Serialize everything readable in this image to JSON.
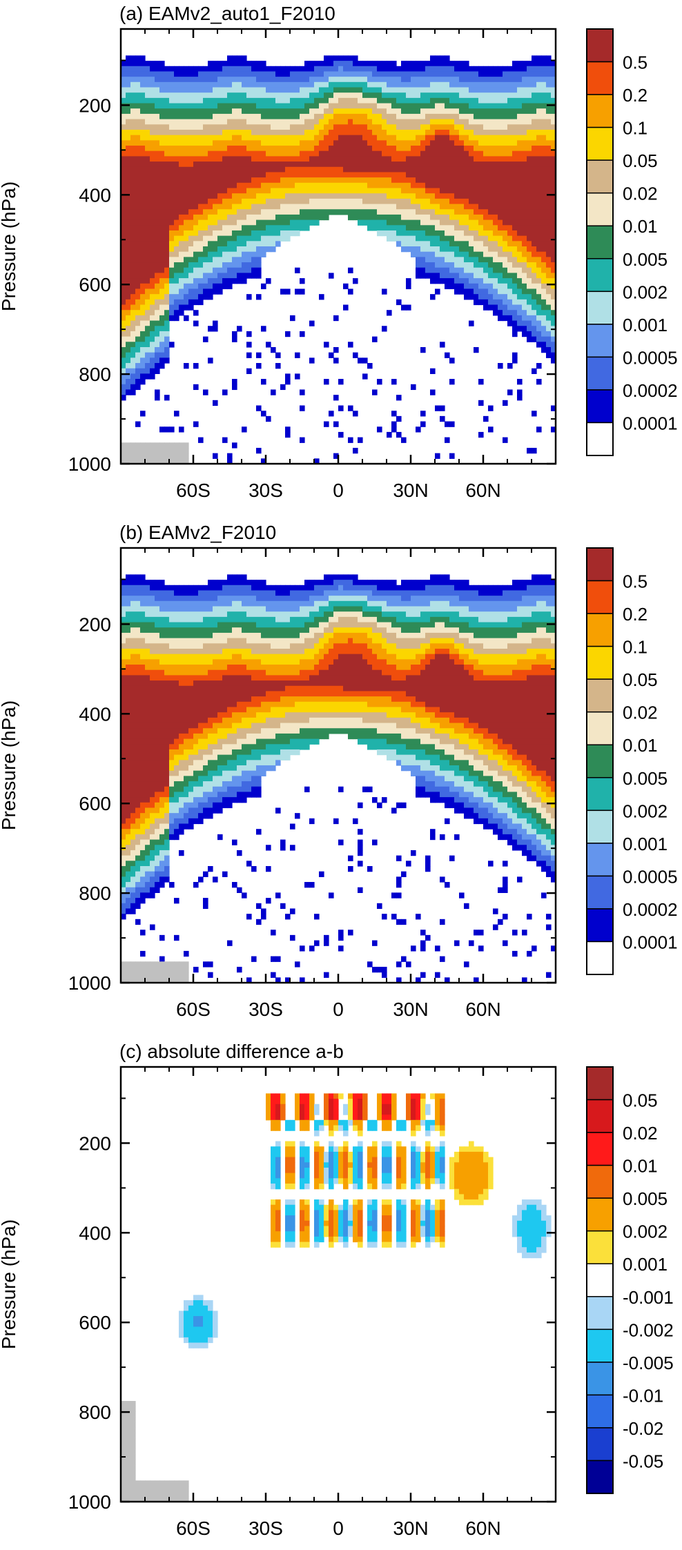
{
  "chart_data": [
    {
      "type": "heatmap",
      "title": "(a) EAMv2_auto1_F2010",
      "ylabel": "Pressure (hPa)",
      "xlabel": "",
      "x_ticks": [
        "60S",
        "30S",
        "0",
        "30N",
        "60N"
      ],
      "x_tick_values": [
        -60,
        -30,
        0,
        30,
        60
      ],
      "xlim": [
        -90,
        90
      ],
      "y_ticks": [
        "200",
        "400",
        "600",
        "800",
        "1000"
      ],
      "y_tick_values": [
        200,
        400,
        600,
        800,
        1000
      ],
      "ylim": [
        1000,
        30
      ],
      "y_reversed": true,
      "colorbar_labels": [
        "0.5",
        "0.2",
        "0.1",
        "0.05",
        "0.02",
        "0.01",
        "0.005",
        "0.002",
        "0.001",
        "0.0005",
        "0.0002",
        "0.0001"
      ],
      "colors": [
        "#a52a2a",
        "#f04e0c",
        "#f7a000",
        "#fbd600",
        "#d4b58a",
        "#f3e6c6",
        "#2e8b57",
        "#20b2aa",
        "#b0e0e6",
        "#6495ed",
        "#4169e1",
        "#0000cd",
        "#ffffff"
      ],
      "field": "ab"
    },
    {
      "type": "heatmap",
      "title": "(b) EAMv2_F2010",
      "ylabel": "Pressure (hPa)",
      "xlabel": "",
      "x_ticks": [
        "60S",
        "30S",
        "0",
        "30N",
        "60N"
      ],
      "x_tick_values": [
        -60,
        -30,
        0,
        30,
        60
      ],
      "xlim": [
        -90,
        90
      ],
      "y_ticks": [
        "200",
        "400",
        "600",
        "800",
        "1000"
      ],
      "y_tick_values": [
        200,
        400,
        600,
        800,
        1000
      ],
      "ylim": [
        1000,
        30
      ],
      "y_reversed": true,
      "colorbar_labels": [
        "0.5",
        "0.2",
        "0.1",
        "0.05",
        "0.02",
        "0.01",
        "0.005",
        "0.002",
        "0.001",
        "0.0005",
        "0.0002",
        "0.0001"
      ],
      "colors": [
        "#a52a2a",
        "#f04e0c",
        "#f7a000",
        "#fbd600",
        "#d4b58a",
        "#f3e6c6",
        "#2e8b57",
        "#20b2aa",
        "#b0e0e6",
        "#6495ed",
        "#4169e1",
        "#0000cd",
        "#ffffff"
      ],
      "field": "ab"
    },
    {
      "type": "heatmap",
      "title": "(c) absolute difference a-b",
      "ylabel": "Pressure (hPa)",
      "xlabel": "",
      "x_ticks": [
        "60S",
        "30S",
        "0",
        "30N",
        "60N"
      ],
      "x_tick_values": [
        -60,
        -30,
        0,
        30,
        60
      ],
      "xlim": [
        -90,
        90
      ],
      "y_ticks": [
        "200",
        "400",
        "600",
        "800",
        "1000"
      ],
      "y_tick_values": [
        200,
        400,
        600,
        800,
        1000
      ],
      "ylim": [
        1000,
        30
      ],
      "y_reversed": true,
      "colorbar_labels": [
        "0.05",
        "0.02",
        "0.01",
        "0.005",
        "0.002",
        "0.001",
        "-0.001",
        "-0.002",
        "-0.005",
        "-0.01",
        "-0.02",
        "-0.05"
      ],
      "colors": [
        "#a52a2a",
        "#d7191c",
        "#ff1a1a",
        "#f06a0c",
        "#f7a000",
        "#fbe03a",
        "#ffffff",
        "#a9d6f5",
        "#1ec8f0",
        "#3a94e6",
        "#2e6ee6",
        "#1a3fd0",
        "#000096"
      ],
      "field": "diff"
    }
  ]
}
